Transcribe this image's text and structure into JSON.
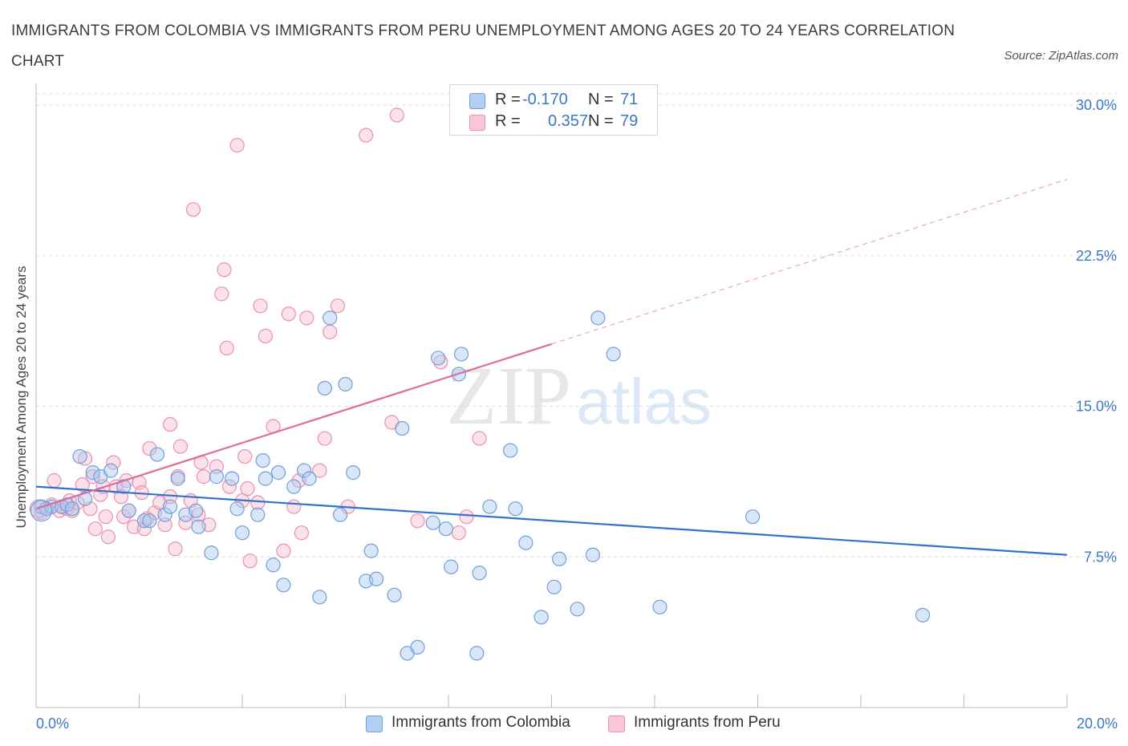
{
  "title": "IMMIGRANTS FROM COLOMBIA VS IMMIGRANTS FROM PERU UNEMPLOYMENT AMONG AGES 20 TO 24 YEARS CORRELATION CHART",
  "source": "Source: ZipAtlas.com",
  "watermark": {
    "zip": "ZIP",
    "atlas": "atlas"
  },
  "legend": {
    "colombia": {
      "r_label": "R =",
      "r_value": "-0.170",
      "n_label": "N =",
      "n_value": "71"
    },
    "peru": {
      "r_label": "R =",
      "r_value": "0.357",
      "n_label": "N =",
      "n_value": "79"
    }
  },
  "bottom_legend": {
    "colombia": "Immigrants from Colombia",
    "peru": "Immigrants from Peru"
  },
  "colors": {
    "colombia_fill": "#a9c8f0",
    "colombia_stroke": "#6f9fdc",
    "colombia_line": "#2f72cf",
    "peru_fill": "#f6bcd0",
    "peru_stroke": "#ec8fb0",
    "peru_line": "#e06b96",
    "tick_label": "#3b78c9",
    "grid": "#dddddd"
  },
  "chart_data": {
    "type": "scatter",
    "title": "IMMIGRANTS FROM COLOMBIA VS IMMIGRANTS FROM PERU UNEMPLOYMENT AMONG AGES 20 TO 24 YEARS CORRELATION CHART",
    "xlabel": "",
    "ylabel": "Unemployment Among Ages 20 to 24 years",
    "xlim": [
      0,
      20
    ],
    "ylim": [
      0,
      30
    ],
    "x_tick_labels": [
      "0.0%",
      "20.0%"
    ],
    "y_ticks": [
      7.5,
      15.0,
      22.5,
      30.0
    ],
    "y_tick_labels": [
      "7.5%",
      "15.0%",
      "22.5%",
      "30.0%"
    ],
    "grid": true,
    "legend_position": "top-center",
    "series": [
      {
        "name": "Immigrants from Colombia",
        "r": -0.17,
        "n": 71,
        "trend": {
          "x": [
            0,
            20
          ],
          "y": [
            11.0,
            7.6
          ]
        },
        "points": [
          [
            0.1,
            10.0
          ],
          [
            0.2,
            9.9
          ],
          [
            0.3,
            10.0
          ],
          [
            0.5,
            10.0
          ],
          [
            0.6,
            10.1
          ],
          [
            0.7,
            9.9
          ],
          [
            0.85,
            12.5
          ],
          [
            0.95,
            10.4
          ],
          [
            1.1,
            11.7
          ],
          [
            1.25,
            11.5
          ],
          [
            1.45,
            11.8
          ],
          [
            1.7,
            11.0
          ],
          [
            1.8,
            9.8
          ],
          [
            2.1,
            9.3
          ],
          [
            2.2,
            9.3
          ],
          [
            2.35,
            12.6
          ],
          [
            2.5,
            9.6
          ],
          [
            2.6,
            10.0
          ],
          [
            2.75,
            11.4
          ],
          [
            2.9,
            9.6
          ],
          [
            3.1,
            9.8
          ],
          [
            3.15,
            9.0
          ],
          [
            3.4,
            7.7
          ],
          [
            3.5,
            11.5
          ],
          [
            3.8,
            11.4
          ],
          [
            3.9,
            9.9
          ],
          [
            4.0,
            8.7
          ],
          [
            4.3,
            9.6
          ],
          [
            4.4,
            12.3
          ],
          [
            4.45,
            11.4
          ],
          [
            4.6,
            7.1
          ],
          [
            4.7,
            11.7
          ],
          [
            4.8,
            6.1
          ],
          [
            5.0,
            11.0
          ],
          [
            5.2,
            11.8
          ],
          [
            5.3,
            11.4
          ],
          [
            5.5,
            5.5
          ],
          [
            5.6,
            15.9
          ],
          [
            5.7,
            19.4
          ],
          [
            5.9,
            9.6
          ],
          [
            6.0,
            16.1
          ],
          [
            6.15,
            11.7
          ],
          [
            6.4,
            6.3
          ],
          [
            6.5,
            7.8
          ],
          [
            6.6,
            6.4
          ],
          [
            6.95,
            5.6
          ],
          [
            7.1,
            13.9
          ],
          [
            7.2,
            2.7
          ],
          [
            7.4,
            3.0
          ],
          [
            7.7,
            9.2
          ],
          [
            7.8,
            17.4
          ],
          [
            7.95,
            8.9
          ],
          [
            8.05,
            7.0
          ],
          [
            8.2,
            16.6
          ],
          [
            8.25,
            17.6
          ],
          [
            8.55,
            2.7
          ],
          [
            8.6,
            6.7
          ],
          [
            8.8,
            10.0
          ],
          [
            9.2,
            12.8
          ],
          [
            9.3,
            9.9
          ],
          [
            9.5,
            8.2
          ],
          [
            9.8,
            4.5
          ],
          [
            10.05,
            6.0
          ],
          [
            10.15,
            7.4
          ],
          [
            10.5,
            4.9
          ],
          [
            10.8,
            7.6
          ],
          [
            10.9,
            19.4
          ],
          [
            11.2,
            17.6
          ],
          [
            12.1,
            5.0
          ],
          [
            13.9,
            9.5
          ],
          [
            17.2,
            4.6
          ]
        ]
      },
      {
        "name": "Immigrants from Peru",
        "r": 0.357,
        "n": 79,
        "trend": {
          "x": [
            0,
            10.0
          ],
          "y": [
            9.9,
            18.1
          ]
        },
        "trend_extension": {
          "x": [
            10.0,
            20
          ],
          "y": [
            18.1,
            26.3
          ]
        },
        "points": [
          [
            0.1,
            9.7
          ],
          [
            0.2,
            9.9
          ],
          [
            0.3,
            10.1
          ],
          [
            0.35,
            11.3
          ],
          [
            0.45,
            9.8
          ],
          [
            0.5,
            10.0
          ],
          [
            0.6,
            9.9
          ],
          [
            0.7,
            9.8
          ],
          [
            0.8,
            10.2
          ],
          [
            0.9,
            11.1
          ],
          [
            0.95,
            12.4
          ],
          [
            1.05,
            9.9
          ],
          [
            1.1,
            11.5
          ],
          [
            1.15,
            8.9
          ],
          [
            1.25,
            10.6
          ],
          [
            1.35,
            9.5
          ],
          [
            1.4,
            8.5
          ],
          [
            1.5,
            12.2
          ],
          [
            1.55,
            11.0
          ],
          [
            1.65,
            10.5
          ],
          [
            1.7,
            9.5
          ],
          [
            1.8,
            9.8
          ],
          [
            1.9,
            9.0
          ],
          [
            2.0,
            11.2
          ],
          [
            2.05,
            10.7
          ],
          [
            2.1,
            8.9
          ],
          [
            2.2,
            12.9
          ],
          [
            2.3,
            9.7
          ],
          [
            2.4,
            10.2
          ],
          [
            2.5,
            9.1
          ],
          [
            2.6,
            14.1
          ],
          [
            2.7,
            7.9
          ],
          [
            2.75,
            11.5
          ],
          [
            2.8,
            13.0
          ],
          [
            2.9,
            9.2
          ],
          [
            3.0,
            10.3
          ],
          [
            3.05,
            24.8
          ],
          [
            3.2,
            12.2
          ],
          [
            3.25,
            11.5
          ],
          [
            3.35,
            9.1
          ],
          [
            3.5,
            12.0
          ],
          [
            3.6,
            20.6
          ],
          [
            3.65,
            21.8
          ],
          [
            3.7,
            17.9
          ],
          [
            3.75,
            11.0
          ],
          [
            3.9,
            28.0
          ],
          [
            4.0,
            10.3
          ],
          [
            4.1,
            10.9
          ],
          [
            4.15,
            7.3
          ],
          [
            4.3,
            10.2
          ],
          [
            4.35,
            20.0
          ],
          [
            4.45,
            18.5
          ],
          [
            4.6,
            14.0
          ],
          [
            4.8,
            7.8
          ],
          [
            4.9,
            19.6
          ],
          [
            5.0,
            10.0
          ],
          [
            5.1,
            11.3
          ],
          [
            5.15,
            8.7
          ],
          [
            5.25,
            19.4
          ],
          [
            5.5,
            11.8
          ],
          [
            5.6,
            13.4
          ],
          [
            5.7,
            18.7
          ],
          [
            5.85,
            20.0
          ],
          [
            6.05,
            10.0
          ],
          [
            6.4,
            28.5
          ],
          [
            6.9,
            14.2
          ],
          [
            7.0,
            29.5
          ],
          [
            7.4,
            9.3
          ],
          [
            7.85,
            17.2
          ],
          [
            8.2,
            8.7
          ],
          [
            8.35,
            9.5
          ],
          [
            8.6,
            13.4
          ],
          [
            2.15,
            9.4
          ],
          [
            1.75,
            11.3
          ],
          [
            2.6,
            10.5
          ],
          [
            3.15,
            9.6
          ],
          [
            4.05,
            12.5
          ],
          [
            1.3,
            11.0
          ],
          [
            0.65,
            10.3
          ]
        ]
      }
    ]
  }
}
